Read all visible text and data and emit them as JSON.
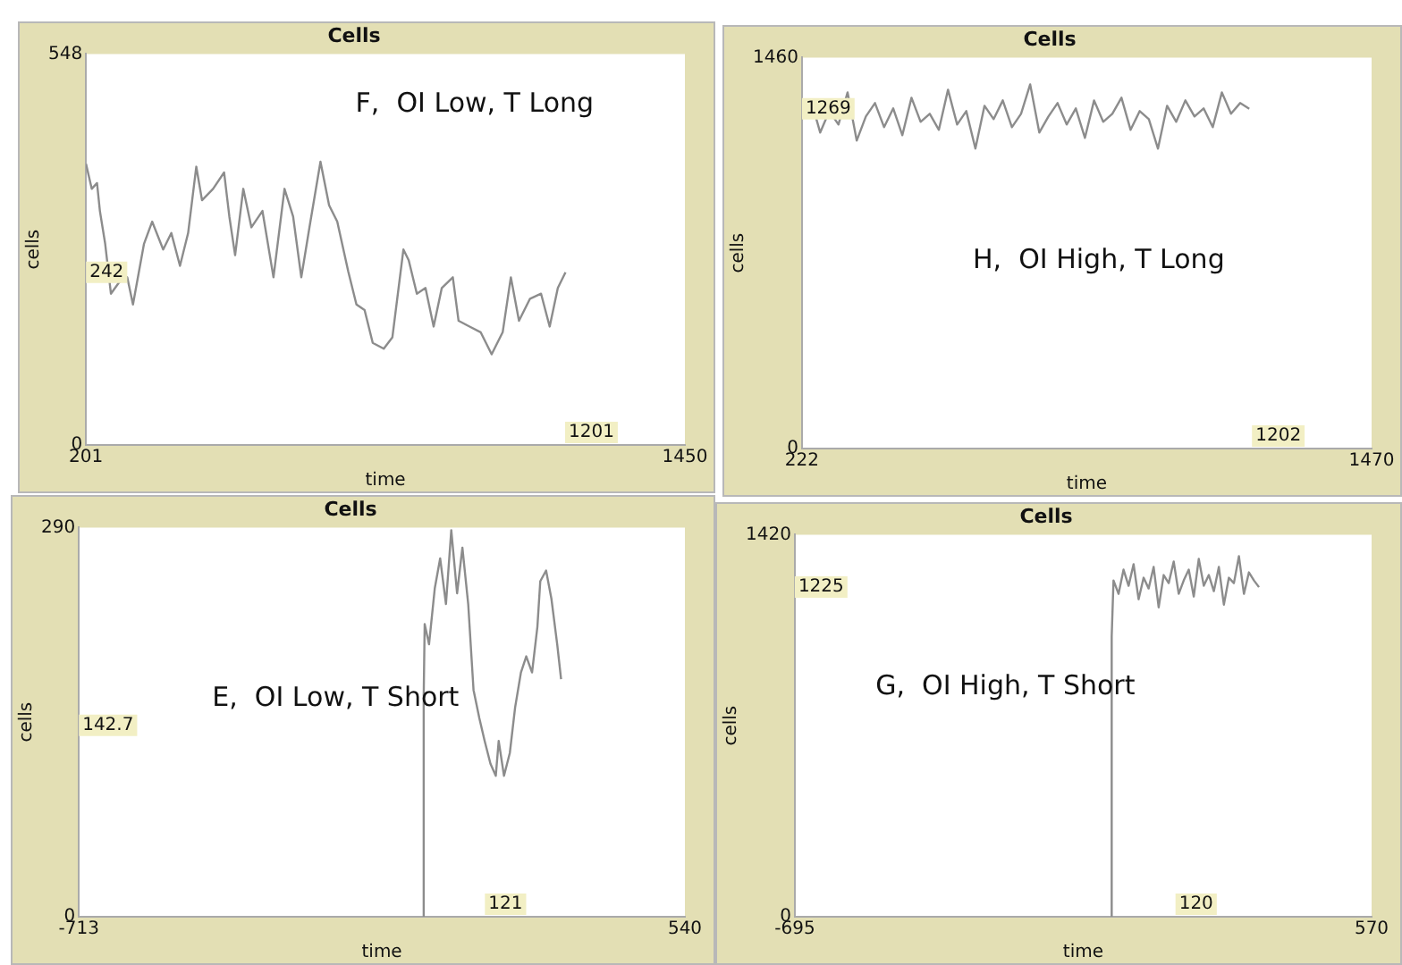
{
  "chart_data": [
    {
      "type": "line",
      "title": "Cells",
      "xlabel": "time",
      "ylabel": "cells",
      "color": "#8c8c8c",
      "annotations": [
        "F,  OI Low, T Long",
        "1201",
        {
          "text": "242",
          "y": 242
        }
      ],
      "x": [
        201,
        213,
        224,
        230,
        241,
        253,
        270,
        287,
        299,
        322,
        339,
        362,
        379,
        397,
        414,
        431,
        443,
        466,
        489,
        500,
        512,
        529,
        546,
        569,
        592,
        615,
        633,
        650,
        667,
        690,
        708,
        725,
        748,
        765,
        782,
        799,
        822,
        840,
        863,
        874,
        891,
        909,
        926,
        943,
        966,
        978,
        1001,
        1024,
        1047,
        1070,
        1087,
        1104,
        1127,
        1150,
        1168,
        1185,
        1201
      ],
      "values": [
        394,
        359,
        367,
        328,
        282,
        212,
        228,
        235,
        197,
        282,
        313,
        274,
        297,
        251,
        297,
        390,
        343,
        359,
        382,
        320,
        266,
        359,
        305,
        328,
        235,
        359,
        320,
        235,
        305,
        397,
        336,
        313,
        243,
        197,
        189,
        143,
        135,
        151,
        274,
        259,
        212,
        220,
        166,
        220,
        235,
        174,
        166,
        158,
        127,
        158,
        235,
        174,
        205,
        212,
        166,
        220,
        242
      ],
      "xlim": [
        201,
        1450
      ],
      "xticks": [
        201,
        1450
      ],
      "ylim": [
        0,
        548
      ],
      "yticks": [
        0,
        548
      ]
    },
    {
      "type": "line",
      "title": "Cells",
      "xlabel": "time",
      "ylabel": "cells",
      "color": "#8c8c8c",
      "annotations": [
        "H,  OI High, T Long",
        "1202",
        {
          "text": "1269",
          "y": 1269
        }
      ],
      "x": [
        222,
        242,
        262,
        282,
        302,
        322,
        342,
        362,
        382,
        402,
        422,
        442,
        462,
        482,
        502,
        522,
        542,
        562,
        582,
        602,
        622,
        642,
        662,
        682,
        702,
        722,
        742,
        762,
        782,
        802,
        822,
        842,
        862,
        882,
        902,
        922,
        942,
        962,
        982,
        1002,
        1022,
        1042,
        1062,
        1082,
        1102,
        1122,
        1142,
        1162,
        1182,
        1202
      ],
      "values": [
        1230,
        1300,
        1180,
        1260,
        1210,
        1330,
        1150,
        1240,
        1290,
        1200,
        1270,
        1170,
        1310,
        1220,
        1250,
        1190,
        1340,
        1210,
        1260,
        1120,
        1280,
        1230,
        1300,
        1200,
        1250,
        1360,
        1180,
        1240,
        1290,
        1210,
        1270,
        1160,
        1300,
        1220,
        1250,
        1310,
        1190,
        1260,
        1230,
        1120,
        1280,
        1220,
        1300,
        1240,
        1270,
        1200,
        1330,
        1250,
        1290,
        1269
      ],
      "xlim": [
        222,
        1470
      ],
      "xticks": [
        222,
        1470
      ],
      "ylim": [
        0,
        1460
      ],
      "yticks": [
        0,
        1460
      ]
    },
    {
      "type": "line",
      "title": "Cells",
      "xlabel": "time",
      "ylabel": "cells",
      "color": "#8c8c8c",
      "annotations": [
        "E,  OI Low, T Short",
        "121",
        {
          "text": "142.7",
          "y": 142.7
        }
      ],
      "x": [
        0,
        0,
        2,
        11,
        23,
        34,
        46,
        57,
        69,
        80,
        92,
        103,
        115,
        126,
        138,
        149,
        155,
        166,
        178,
        189,
        201,
        212,
        224,
        235,
        241,
        253,
        264,
        276,
        284
      ],
      "values": [
        0,
        165,
        218,
        203,
        245,
        267,
        233,
        288,
        241,
        275,
        233,
        169,
        148,
        131,
        114,
        105,
        131,
        105,
        122,
        156,
        182,
        194,
        182,
        216,
        250,
        258,
        237,
        203,
        177
      ],
      "xlim": [
        -713,
        540
      ],
      "xticks": [
        -713,
        540
      ],
      "ylim": [
        0,
        290
      ],
      "yticks": [
        0,
        290
      ]
    },
    {
      "type": "line",
      "title": "Cells",
      "xlabel": "time",
      "ylabel": "cells",
      "color": "#8c8c8c",
      "annotations": [
        "G,  OI High, T Short",
        "120",
        {
          "text": "1225",
          "y": 1225
        }
      ],
      "x": [
        0,
        0,
        4,
        15,
        26,
        37,
        48,
        59,
        70,
        81,
        92,
        103,
        114,
        125,
        136,
        147,
        158,
        169,
        180,
        191,
        202,
        213,
        224,
        235,
        246,
        257,
        268,
        279,
        290,
        301,
        312,
        323
      ],
      "values": [
        0,
        1042,
        1250,
        1200,
        1290,
        1230,
        1310,
        1180,
        1260,
        1220,
        1300,
        1150,
        1270,
        1240,
        1320,
        1200,
        1250,
        1290,
        1190,
        1330,
        1230,
        1270,
        1210,
        1300,
        1160,
        1260,
        1240,
        1340,
        1200,
        1280,
        1250,
        1225
      ],
      "xlim": [
        -695,
        570
      ],
      "xticks": [
        -695,
        570
      ],
      "ylim": [
        0,
        1420
      ],
      "yticks": [
        0,
        1420
      ]
    }
  ]
}
